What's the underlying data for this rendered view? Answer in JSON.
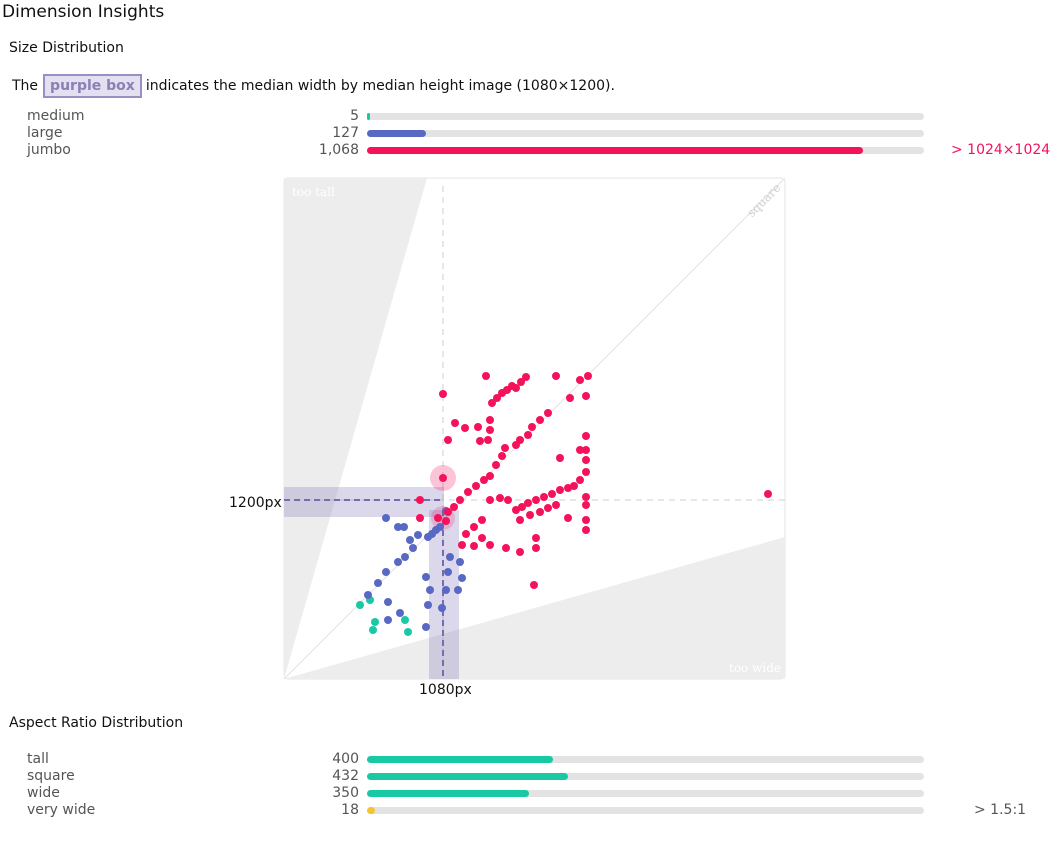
{
  "page": {
    "title": "Dimension Insights"
  },
  "size_section": {
    "title": "Size Distribution",
    "note_prefix": "The",
    "note_box": "purple box",
    "note_suffix": "indicates the median width by median height image (1080×1200).",
    "rows": [
      {
        "label": "medium",
        "count": "5",
        "value": 5,
        "color": "#19c9a4"
      },
      {
        "label": "large",
        "count": "127",
        "value": 127,
        "color": "#5869c3"
      },
      {
        "label": "jumbo",
        "count": "1,068",
        "value": 1068,
        "color": "#f4125b"
      }
    ],
    "jumbo_note": "> 1024×1024",
    "jumbo_note_color": "#f4125b",
    "scale_max": 1200
  },
  "scatter": {
    "region_labels": {
      "too_tall": "too tall",
      "square": "square",
      "too_wide": "too wide"
    },
    "median_width_label": "1080px",
    "median_height_label": "1200px",
    "colors": {
      "medium": "#19c9a4",
      "large": "#5869c3",
      "jumbo": "#f4125b",
      "median_band": "#8a7fbd",
      "region": "#ededed"
    }
  },
  "aspect_section": {
    "title": "Aspect Ratio Distribution",
    "rows": [
      {
        "label": "tall",
        "count": "400",
        "value": 400,
        "color": "#19c9a4"
      },
      {
        "label": "square",
        "count": "432",
        "value": 432,
        "color": "#19c9a4"
      },
      {
        "label": "wide",
        "count": "350",
        "value": 350,
        "color": "#19c9a4"
      },
      {
        "label": "very wide",
        "count": "18",
        "value": 18,
        "color": "#f5c531"
      }
    ],
    "very_wide_note": "> 1.5:1",
    "scale_max": 1200
  },
  "chart_data": [
    {
      "type": "bar",
      "title": "Size Distribution",
      "categories": [
        "medium",
        "large",
        "jumbo"
      ],
      "values": [
        5,
        127,
        1068
      ],
      "annotations": [
        "> 1024×1024"
      ]
    },
    {
      "type": "scatter",
      "xlabel": "",
      "ylabel": "",
      "median": {
        "width": 1080,
        "height": 1200
      },
      "region_labels": [
        "too tall",
        "square",
        "too wide"
      ],
      "series": [
        {
          "name": "medium",
          "points": [
            [
              360,
              605
            ],
            [
              370,
              600
            ],
            [
              373,
              630
            ],
            [
              375,
              622
            ],
            [
              408,
              632
            ],
            [
              405,
              620
            ]
          ]
        },
        {
          "name": "large",
          "points": [
            [
              386,
              518
            ],
            [
              398,
              527
            ],
            [
              404,
              527
            ],
            [
              410,
              540
            ],
            [
              418,
              535
            ],
            [
              428,
              537
            ],
            [
              432,
              534
            ],
            [
              436,
              530
            ],
            [
              440,
              527
            ],
            [
              446,
              511
            ],
            [
              413,
              548
            ],
            [
              405,
              557
            ],
            [
              398,
              562
            ],
            [
              386,
              572
            ],
            [
              378,
              583
            ],
            [
              368,
              595
            ],
            [
              388,
              602
            ],
            [
              400,
              613
            ],
            [
              388,
              620
            ],
            [
              426,
              577
            ],
            [
              448,
              572
            ],
            [
              462,
              578
            ],
            [
              460,
              562
            ],
            [
              430,
              590
            ],
            [
              428,
              605
            ],
            [
              426,
              627
            ],
            [
              442,
              608
            ],
            [
              446,
              590
            ],
            [
              458,
              590
            ],
            [
              450,
              557
            ]
          ]
        },
        {
          "name": "jumbo",
          "points": [
            [
              443,
              478
            ],
            [
              443,
              394
            ],
            [
              486,
              376
            ],
            [
              516,
              388
            ],
            [
              521,
              382
            ],
            [
              526,
              377
            ],
            [
              556,
              376
            ],
            [
              580,
              380
            ],
            [
              588,
              376
            ],
            [
              586,
              396
            ],
            [
              570,
              398
            ],
            [
              492,
              403
            ],
            [
              497,
              398
            ],
            [
              502,
              393
            ],
            [
              507,
              390
            ],
            [
              512,
              386
            ],
            [
              455,
              423
            ],
            [
              448,
              440
            ],
            [
              465,
              428
            ],
            [
              478,
              427
            ],
            [
              490,
              420
            ],
            [
              490,
              430
            ],
            [
              488,
              440
            ],
            [
              480,
              441
            ],
            [
              548,
              413
            ],
            [
              540,
              420
            ],
            [
              532,
              427
            ],
            [
              528,
              435
            ],
            [
              520,
              440
            ],
            [
              516,
              445
            ],
            [
              505,
              448
            ],
            [
              502,
              456
            ],
            [
              496,
              465
            ],
            [
              490,
              476
            ],
            [
              468,
              492
            ],
            [
              476,
              486
            ],
            [
              484,
              480
            ],
            [
              460,
              500
            ],
            [
              454,
              507
            ],
            [
              448,
              512
            ],
            [
              438,
              518
            ],
            [
              446,
              521
            ],
            [
              420,
              500
            ],
            [
              420,
              518
            ],
            [
              586,
              436
            ],
            [
              586,
              450
            ],
            [
              586,
              460
            ],
            [
              586,
              472
            ],
            [
              580,
              450
            ],
            [
              560,
              458
            ],
            [
              580,
              480
            ],
            [
              574,
              486
            ],
            [
              568,
              488
            ],
            [
              560,
              490
            ],
            [
              552,
              494
            ],
            [
              544,
              497
            ],
            [
              536,
              500
            ],
            [
              528,
              503
            ],
            [
              522,
              507
            ],
            [
              516,
              510
            ],
            [
              586,
              497
            ],
            [
              586,
              505
            ],
            [
              586,
              520
            ],
            [
              586,
              530
            ],
            [
              568,
              518
            ],
            [
              556,
              505
            ],
            [
              548,
              508
            ],
            [
              540,
              512
            ],
            [
              530,
              515
            ],
            [
              520,
              520
            ],
            [
              482,
              520
            ],
            [
              474,
              527
            ],
            [
              466,
              534
            ],
            [
              462,
              545
            ],
            [
              474,
              546
            ],
            [
              490,
              545
            ],
            [
              482,
              538
            ],
            [
              536,
              538
            ],
            [
              536,
              548
            ],
            [
              520,
              552
            ],
            [
              506,
              548
            ],
            [
              534,
              585
            ],
            [
              768,
              494
            ],
            [
              490,
              500
            ],
            [
              500,
              498
            ],
            [
              508,
              500
            ]
          ]
        }
      ]
    },
    {
      "type": "bar",
      "title": "Aspect Ratio Distribution",
      "categories": [
        "tall",
        "square",
        "wide",
        "very wide"
      ],
      "values": [
        400,
        432,
        350,
        18
      ],
      "annotations": [
        "> 1.5:1"
      ]
    }
  ]
}
